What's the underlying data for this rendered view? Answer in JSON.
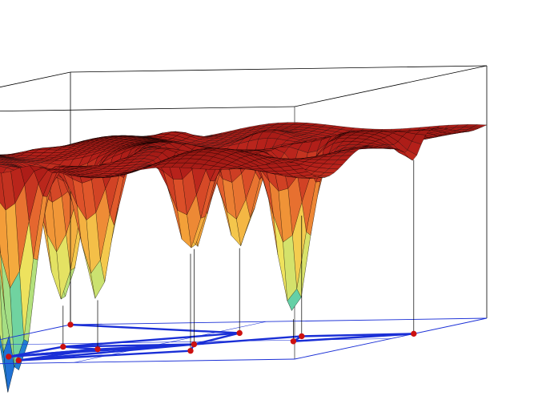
{
  "chart_data": {
    "type": "surface",
    "title": "",
    "xlabel": "",
    "ylabel": "",
    "zlabel": "",
    "axes_box": true,
    "grid": false,
    "colormap": [
      "#1f6fd6",
      "#33c6c0",
      "#b8e27a",
      "#f4e25a",
      "#f4a33a",
      "#e0552b",
      "#b5201a",
      "#8e1410"
    ],
    "surface_edge_color": "#000000",
    "floor_graph": {
      "line_color": "#1a2fd6",
      "node_color": "#cc1111",
      "nodes": [
        {
          "x": 0.0,
          "y": 0.0
        },
        {
          "x": 0.23,
          "y": 0.82
        },
        {
          "x": 0.3,
          "y": 0.92
        },
        {
          "x": 0.25,
          "y": 0.58
        },
        {
          "x": 0.37,
          "y": 0.66
        },
        {
          "x": 0.54,
          "y": 0.29
        },
        {
          "x": 0.56,
          "y": 0.57
        },
        {
          "x": 0.63,
          "y": 0.74
        },
        {
          "x": 0.78,
          "y": 0.53
        },
        {
          "x": 0.74,
          "y": 0.4
        },
        {
          "x": 1.0,
          "y": 0.38
        }
      ],
      "edges": [
        [
          0,
          5
        ],
        [
          5,
          6
        ],
        [
          5,
          3
        ],
        [
          6,
          3
        ],
        [
          6,
          7
        ],
        [
          6,
          9
        ],
        [
          9,
          10
        ],
        [
          10,
          8
        ],
        [
          9,
          8
        ],
        [
          1,
          4
        ],
        [
          1,
          3
        ],
        [
          1,
          6
        ],
        [
          2,
          4
        ],
        [
          2,
          7
        ],
        [
          3,
          4
        ],
        [
          4,
          6
        ],
        [
          2,
          6
        ],
        [
          1,
          4
        ]
      ]
    },
    "wells": [
      {
        "x": 0.0,
        "y": 0.0,
        "depth": 0.05
      },
      {
        "x": 0.23,
        "y": 0.82,
        "depth": 0.9
      },
      {
        "x": 0.3,
        "y": 0.92,
        "depth": 0.88
      },
      {
        "x": 0.25,
        "y": 0.58,
        "depth": 0.55
      },
      {
        "x": 0.37,
        "y": 0.66,
        "depth": 0.55
      },
      {
        "x": 0.54,
        "y": 0.29,
        "depth": 0.38
      },
      {
        "x": 0.56,
        "y": 0.57,
        "depth": 0.42
      },
      {
        "x": 0.63,
        "y": 0.74,
        "depth": 0.4
      },
      {
        "x": 0.78,
        "y": 0.53,
        "depth": 0.65
      },
      {
        "x": 0.74,
        "y": 0.4,
        "depth": 0.3
      },
      {
        "x": 1.0,
        "y": 0.38,
        "depth": 0.08
      }
    ],
    "xlim": [
      0,
      1
    ],
    "ylim": [
      0,
      1
    ],
    "zlim": [
      0,
      1
    ]
  }
}
